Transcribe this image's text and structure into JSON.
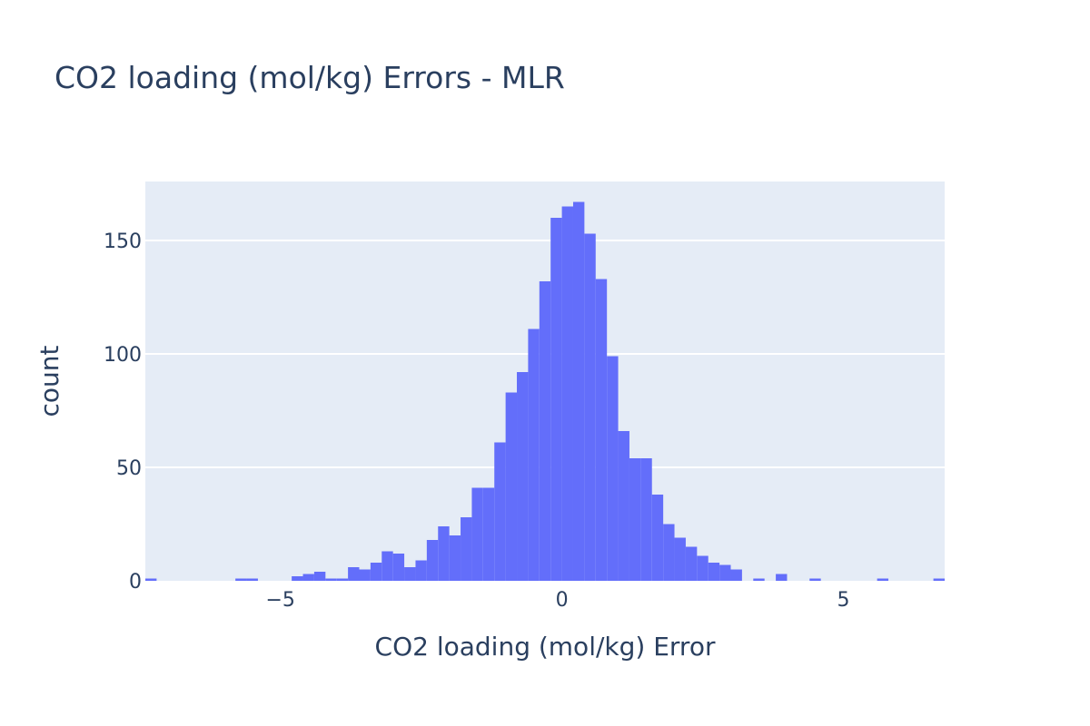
{
  "chart_data": {
    "type": "bar",
    "title": "CO2 loading (mol/kg) Errors - MLR",
    "xlabel": "CO2 loading (mol/kg) Error",
    "ylabel": "count",
    "bar_color": "#636efa",
    "plot_bg_color": "#e5ecf6",
    "grid": true,
    "xlim": [
      -7.4,
      6.8
    ],
    "ylim": [
      0,
      176
    ],
    "xticks": [
      {
        "value": -5,
        "label": "−5"
      },
      {
        "value": 0,
        "label": "0"
      },
      {
        "value": 5,
        "label": "5"
      }
    ],
    "yticks": [
      {
        "value": 0,
        "label": "0"
      },
      {
        "value": 50,
        "label": "50"
      },
      {
        "value": 100,
        "label": "100"
      },
      {
        "value": 150,
        "label": "150"
      }
    ],
    "bin_width": 0.2,
    "bins": [
      {
        "x": -7.4,
        "count": 1
      },
      {
        "x": -5.8,
        "count": 1
      },
      {
        "x": -5.6,
        "count": 1
      },
      {
        "x": -4.8,
        "count": 2
      },
      {
        "x": -4.6,
        "count": 3
      },
      {
        "x": -4.4,
        "count": 4
      },
      {
        "x": -4.2,
        "count": 1
      },
      {
        "x": -4.0,
        "count": 1
      },
      {
        "x": -3.8,
        "count": 6
      },
      {
        "x": -3.6,
        "count": 5
      },
      {
        "x": -3.4,
        "count": 8
      },
      {
        "x": -3.2,
        "count": 13
      },
      {
        "x": -3.0,
        "count": 12
      },
      {
        "x": -2.8,
        "count": 6
      },
      {
        "x": -2.6,
        "count": 9
      },
      {
        "x": -2.4,
        "count": 18
      },
      {
        "x": -2.2,
        "count": 24
      },
      {
        "x": -2.0,
        "count": 20
      },
      {
        "x": -1.8,
        "count": 28
      },
      {
        "x": -1.6,
        "count": 41
      },
      {
        "x": -1.4,
        "count": 41
      },
      {
        "x": -1.2,
        "count": 61
      },
      {
        "x": -1.0,
        "count": 83
      },
      {
        "x": -0.8,
        "count": 92
      },
      {
        "x": -0.6,
        "count": 111
      },
      {
        "x": -0.4,
        "count": 132
      },
      {
        "x": -0.2,
        "count": 160
      },
      {
        "x": 0.0,
        "count": 165
      },
      {
        "x": 0.2,
        "count": 167
      },
      {
        "x": 0.4,
        "count": 153
      },
      {
        "x": 0.6,
        "count": 133
      },
      {
        "x": 0.8,
        "count": 99
      },
      {
        "x": 1.0,
        "count": 66
      },
      {
        "x": 1.2,
        "count": 54
      },
      {
        "x": 1.4,
        "count": 54
      },
      {
        "x": 1.6,
        "count": 38
      },
      {
        "x": 1.8,
        "count": 25
      },
      {
        "x": 2.0,
        "count": 19
      },
      {
        "x": 2.2,
        "count": 15
      },
      {
        "x": 2.4,
        "count": 11
      },
      {
        "x": 2.6,
        "count": 8
      },
      {
        "x": 2.8,
        "count": 7
      },
      {
        "x": 3.0,
        "count": 5
      },
      {
        "x": 3.4,
        "count": 1
      },
      {
        "x": 3.8,
        "count": 3
      },
      {
        "x": 4.4,
        "count": 1
      },
      {
        "x": 5.6,
        "count": 1
      },
      {
        "x": 6.6,
        "count": 1
      }
    ]
  }
}
